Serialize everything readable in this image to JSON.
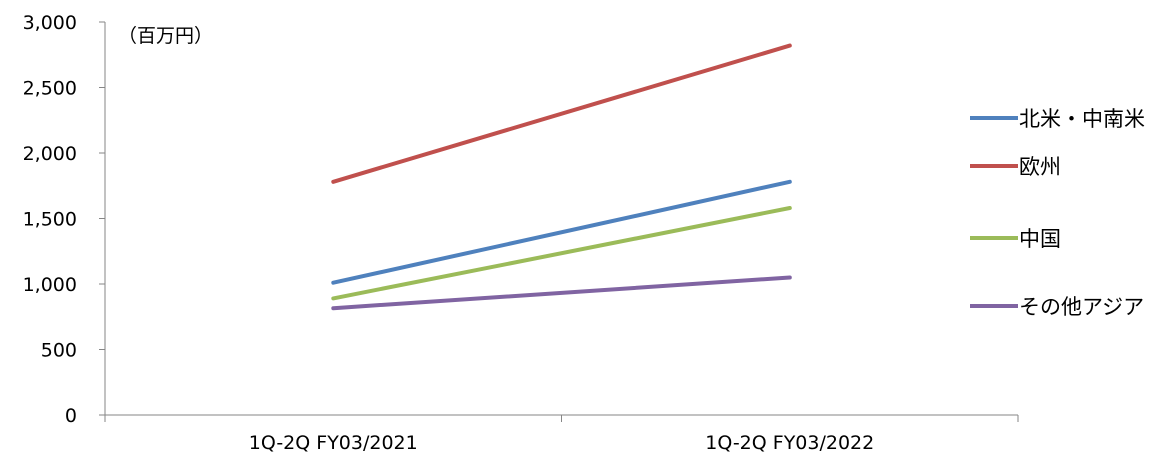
{
  "chart_data": {
    "type": "line",
    "title": "",
    "unit_label": "（百万円）",
    "xlabel": "",
    "ylabel": "",
    "categories": [
      "1Q-2Q FY03/2021",
      "1Q-2Q FY03/2022"
    ],
    "ylim": [
      0,
      3000
    ],
    "yticks": [
      0,
      500,
      1000,
      1500,
      2000,
      2500,
      3000
    ],
    "ytick_labels": [
      "0",
      "500",
      "1,000",
      "1,500",
      "2,000",
      "2,500",
      "3,000"
    ],
    "grid": false,
    "legend_position": "right",
    "series": [
      {
        "name": "北米・中南米",
        "color": "#4f81bd",
        "values": [
          1010,
          1780
        ]
      },
      {
        "name": "欧州",
        "color": "#c0504d",
        "values": [
          1780,
          2820
        ]
      },
      {
        "name": "中国",
        "color": "#9bbb59",
        "values": [
          890,
          1580
        ]
      },
      {
        "name": "その他アジア",
        "color": "#8064a2",
        "values": [
          815,
          1050
        ]
      }
    ]
  }
}
